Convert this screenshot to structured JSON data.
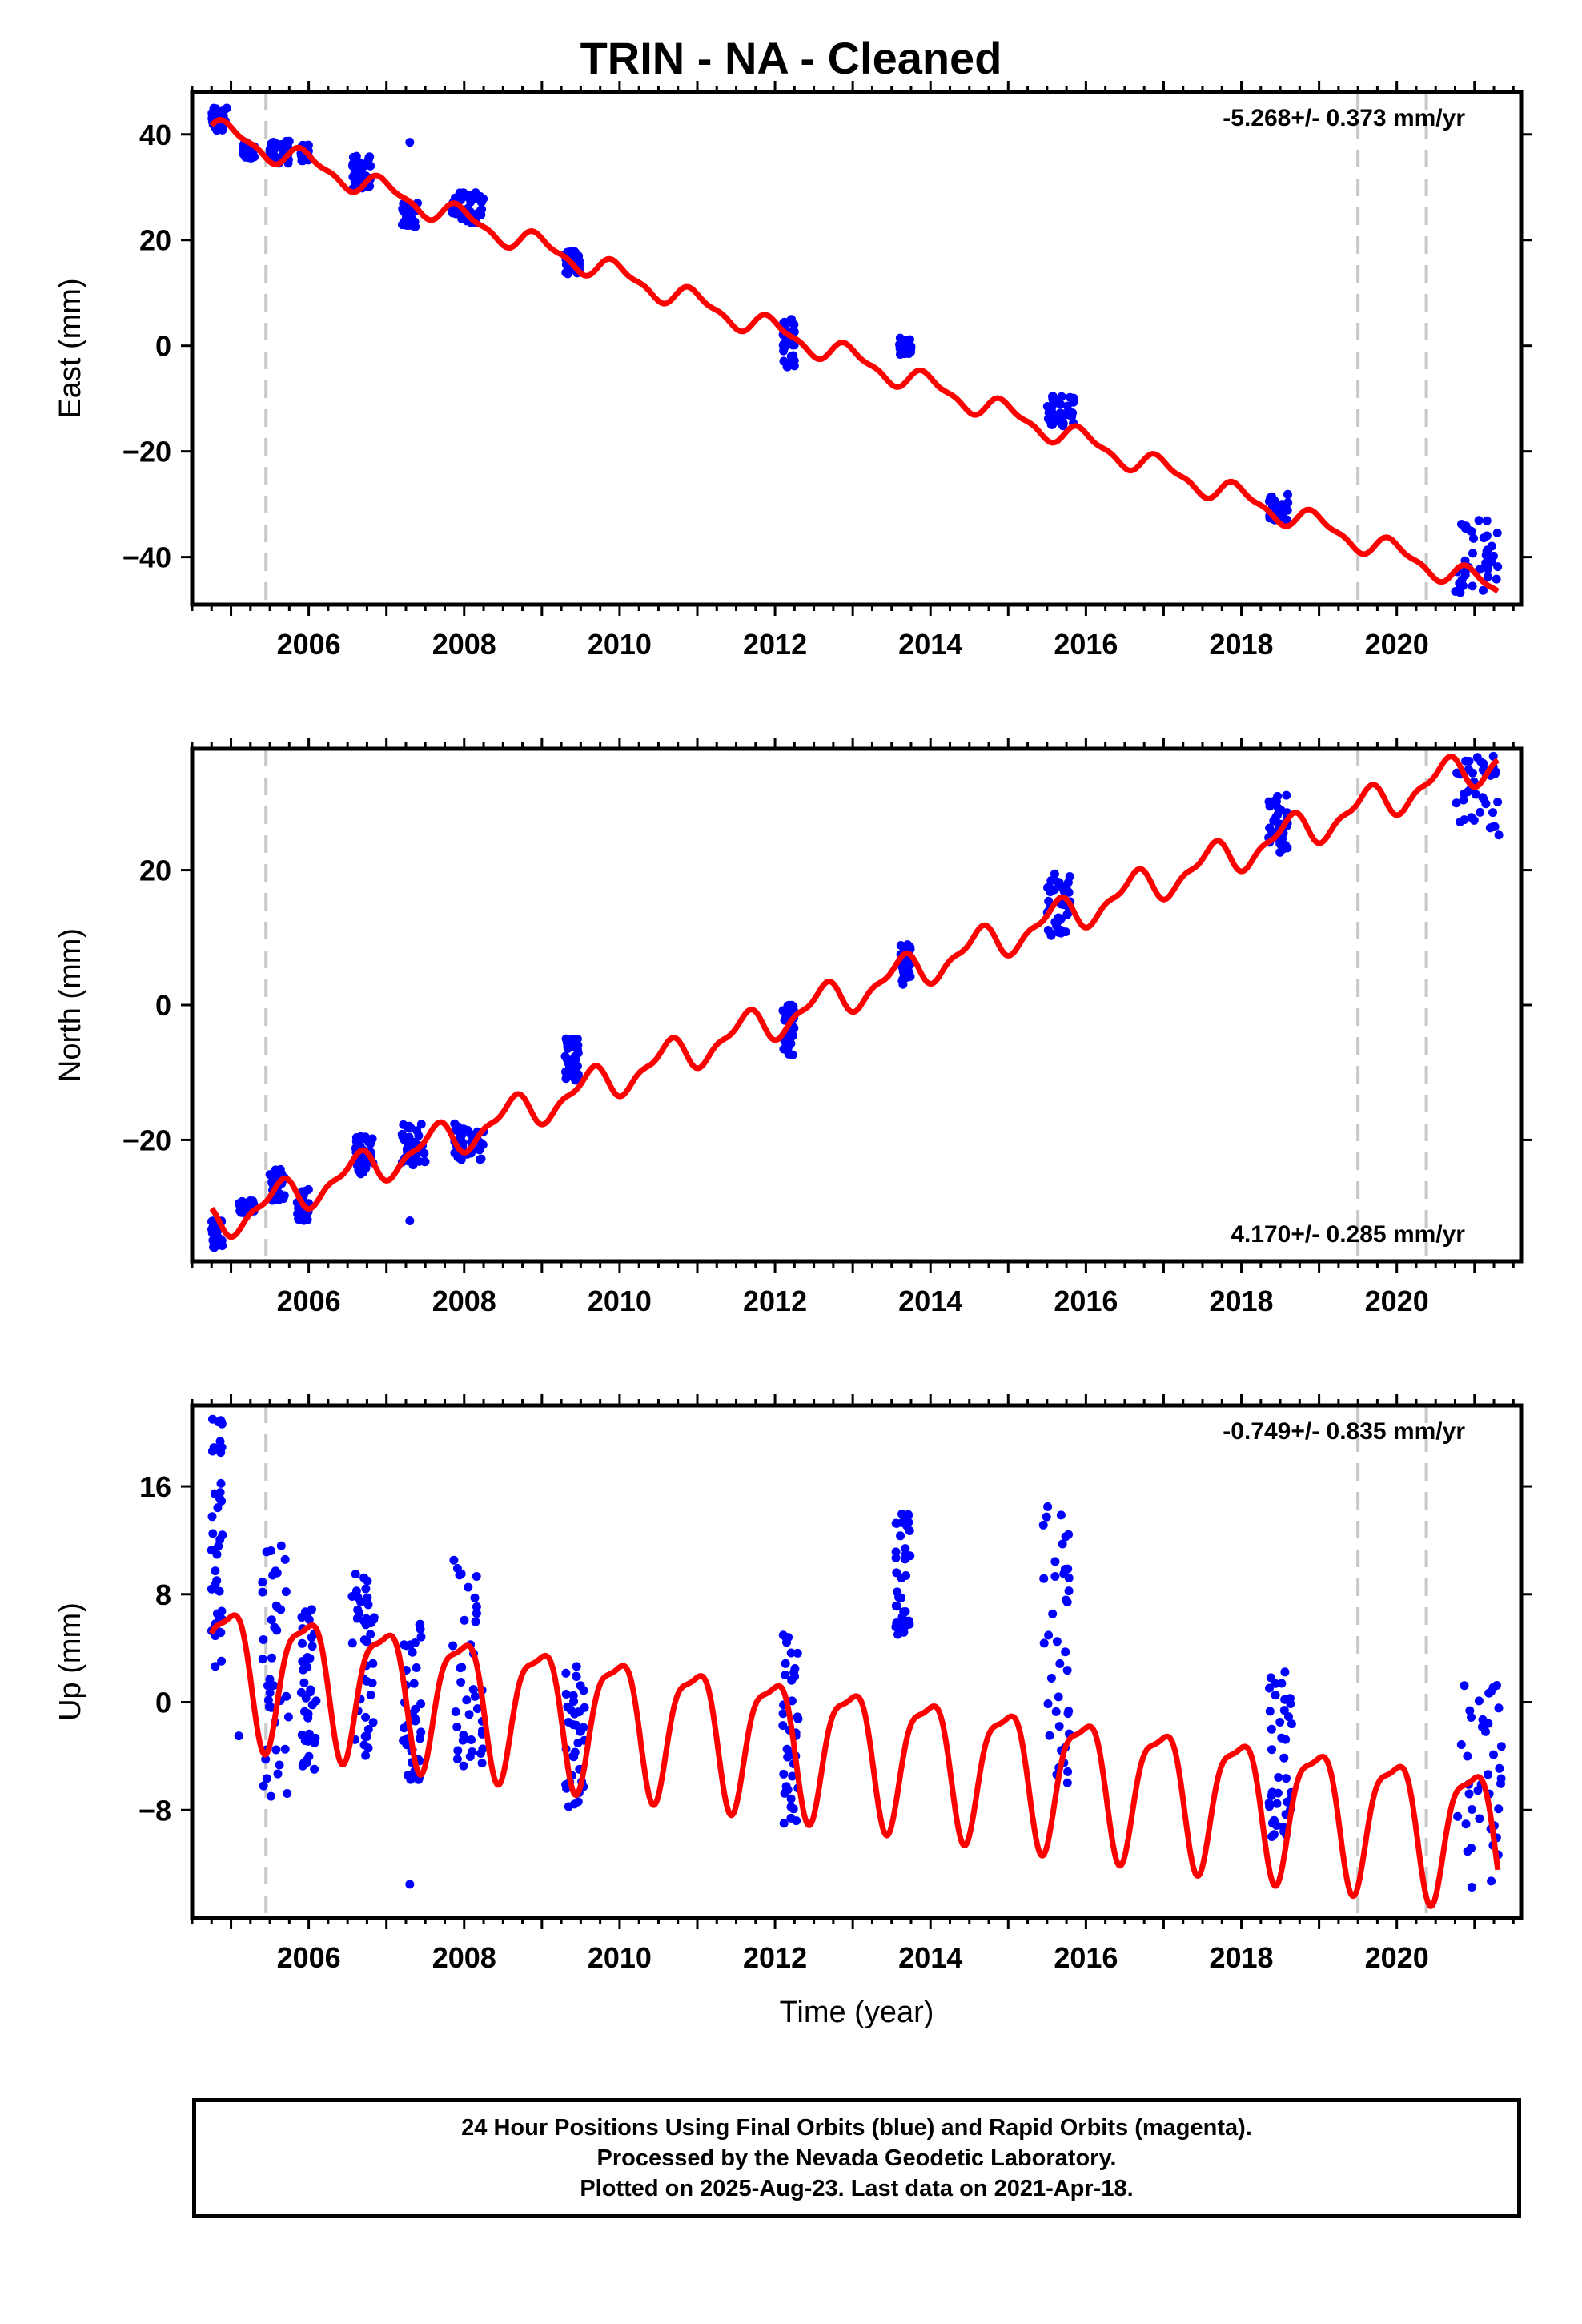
{
  "title": "TRIN  - NA - Cleaned",
  "colors": {
    "data": "#0000ff",
    "model": "#ff0000",
    "event_line": "#c8c8c8",
    "frame": "#000000"
  },
  "chart_data": [
    {
      "type": "scatter",
      "name": "east",
      "ylabel": "East (mm)",
      "xlabel": "",
      "rate_label": "-5.268+/- 0.373 mm/yr",
      "rate_position": "top-right",
      "xlim": [
        2004.5,
        2021.6
      ],
      "ylim": [
        -49,
        48
      ],
      "x_ticks": [
        2006,
        2008,
        2010,
        2012,
        2014,
        2016,
        2018,
        2020
      ],
      "y_ticks": [
        40,
        20,
        0,
        -20,
        -40
      ],
      "event_lines": [
        2005.45,
        2019.5,
        2020.38
      ],
      "model": {
        "offset": 39.7,
        "t0": 2005,
        "rate": -5.268,
        "annual_amp": 2.0,
        "semiannual_amp": 0.8,
        "annual_phase": 0.72,
        "semiannual_phase": 0.22
      },
      "data_clusters": [
        {
          "x": [
            2004.75,
            2004.95
          ],
          "y": [
            40.5,
            45.0
          ]
        },
        {
          "x": [
            2005.15,
            2005.3
          ],
          "y": [
            35.5,
            38.5
          ]
        },
        {
          "x": [
            2005.5,
            2005.75
          ],
          "y": [
            34.5,
            39.0
          ]
        },
        {
          "x": [
            2005.9,
            2006.0
          ],
          "y": [
            35.0,
            38.0
          ]
        },
        {
          "x": [
            2006.55,
            2006.8
          ],
          "y": [
            29.5,
            36.0
          ]
        },
        {
          "x": [
            2007.2,
            2007.4
          ],
          "y": [
            22.0,
            27.0
          ]
        },
        {
          "x": [
            2007.85,
            2008.25
          ],
          "y": [
            23.0,
            29.0
          ]
        },
        {
          "x": [
            2009.3,
            2009.5
          ],
          "y": [
            13.5,
            18.0
          ]
        },
        {
          "x": [
            2012.1,
            2012.25
          ],
          "y": [
            -4.0,
            5.0
          ]
        },
        {
          "x": [
            2013.6,
            2013.75
          ],
          "y": [
            -2.0,
            1.5
          ]
        },
        {
          "x": [
            2015.5,
            2015.85
          ],
          "y": [
            -15.5,
            -9.5
          ]
        },
        {
          "x": [
            2018.35,
            2018.6
          ],
          "y": [
            -33.0,
            -28.0
          ]
        },
        {
          "x": [
            2020.75,
            2021.3
          ],
          "y": [
            -47.0,
            -33.0
          ]
        }
      ],
      "outliers": [
        {
          "x": 2007.3,
          "y": 38.5
        }
      ]
    },
    {
      "type": "scatter",
      "name": "north",
      "ylabel": "North (mm)",
      "xlabel": "",
      "rate_label": "4.170+/- 0.285 mm/yr",
      "rate_position": "bottom-right",
      "xlim": [
        2004.5,
        2021.6
      ],
      "ylim": [
        -38,
        38
      ],
      "x_ticks": [
        2006,
        2008,
        2010,
        2012,
        2014,
        2016,
        2018,
        2020
      ],
      "y_ticks": [
        20,
        0,
        -20
      ],
      "event_lines": [
        2005.45,
        2019.5,
        2020.38
      ],
      "model": {
        "offset": -31.5,
        "t0": 2005,
        "rate": 4.17,
        "annual_amp": 2.4,
        "semiannual_amp": 1.0,
        "annual_phase": 0.35,
        "semiannual_phase": 0.1
      },
      "data_clusters": [
        {
          "x": [
            2004.75,
            2004.9
          ],
          "y": [
            -36.0,
            -32.0
          ]
        },
        {
          "x": [
            2005.1,
            2005.3
          ],
          "y": [
            -31.0,
            -29.0
          ]
        },
        {
          "x": [
            2005.5,
            2005.7
          ],
          "y": [
            -29.0,
            -24.0
          ]
        },
        {
          "x": [
            2005.85,
            2006.0
          ],
          "y": [
            -32.0,
            -27.0
          ]
        },
        {
          "x": [
            2006.6,
            2006.85
          ],
          "y": [
            -25.5,
            -19.5
          ]
        },
        {
          "x": [
            2007.2,
            2007.5
          ],
          "y": [
            -24.0,
            -17.5
          ]
        },
        {
          "x": [
            2007.85,
            2008.25
          ],
          "y": [
            -23.0,
            -17.5
          ]
        },
        {
          "x": [
            2009.3,
            2009.5
          ],
          "y": [
            -12.0,
            -5.0
          ]
        },
        {
          "x": [
            2012.1,
            2012.25
          ],
          "y": [
            -7.5,
            0.0
          ]
        },
        {
          "x": [
            2013.6,
            2013.75
          ],
          "y": [
            3.0,
            9.0
          ]
        },
        {
          "x": [
            2015.5,
            2015.8
          ],
          "y": [
            10.0,
            19.5
          ]
        },
        {
          "x": [
            2018.35,
            2018.6
          ],
          "y": [
            22.5,
            31.5
          ]
        },
        {
          "x": [
            2020.75,
            2021.35
          ],
          "y": [
            24.0,
            37.0
          ]
        }
      ],
      "outliers": [
        {
          "x": 2007.3,
          "y": -32.0
        }
      ]
    },
    {
      "type": "scatter",
      "name": "up",
      "ylabel": "Up (mm)",
      "xlabel": "Time (year)",
      "rate_label": "-0.749+/- 0.835 mm/yr",
      "rate_position": "top-right",
      "xlim": [
        2004.5,
        2021.6
      ],
      "ylim": [
        -16,
        22
      ],
      "x_ticks": [
        2006,
        2008,
        2010,
        2012,
        2014,
        2016,
        2018,
        2020
      ],
      "y_ticks": [
        16,
        8,
        0,
        -8
      ],
      "event_lines": [
        2005.45,
        2019.5,
        2020.38
      ],
      "model": {
        "offset": 2.6,
        "t0": 2005,
        "rate": -0.749,
        "annual_amp": 4.8,
        "semiannual_amp": 1.4,
        "annual_phase": 0.7,
        "semiannual_phase": 0.55
      },
      "data_clusters": [
        {
          "x": [
            2004.75,
            2004.9
          ],
          "y": [
            2.0,
            21.0
          ]
        },
        {
          "x": [
            2005.4,
            2005.75
          ],
          "y": [
            -7.0,
            12.0
          ]
        },
        {
          "x": [
            2005.9,
            2006.1
          ],
          "y": [
            -5.0,
            7.0
          ]
        },
        {
          "x": [
            2006.55,
            2006.85
          ],
          "y": [
            -4.0,
            9.5
          ]
        },
        {
          "x": [
            2007.2,
            2007.45
          ],
          "y": [
            -6.0,
            6.0
          ]
        },
        {
          "x": [
            2007.85,
            2008.25
          ],
          "y": [
            -5.0,
            11.0
          ]
        },
        {
          "x": [
            2009.3,
            2009.55
          ],
          "y": [
            -9.0,
            3.5
          ]
        },
        {
          "x": [
            2012.1,
            2012.3
          ],
          "y": [
            -9.0,
            5.0
          ]
        },
        {
          "x": [
            2013.55,
            2013.75
          ],
          "y": [
            5.0,
            14.5
          ]
        },
        {
          "x": [
            2015.45,
            2015.8
          ],
          "y": [
            -6.0,
            14.5
          ]
        },
        {
          "x": [
            2018.35,
            2018.65
          ],
          "y": [
            -11.0,
            2.5
          ]
        },
        {
          "x": [
            2020.75,
            2021.35
          ],
          "y": [
            -15.0,
            2.5
          ]
        }
      ],
      "outliers": [
        {
          "x": 2007.3,
          "y": -13.5
        },
        {
          "x": 2005.1,
          "y": -2.5
        }
      ]
    }
  ],
  "footer": {
    "line1": "24 Hour Positions Using Final Orbits (blue) and Rapid Orbits (magenta).",
    "line2": "Processed by the Nevada Geodetic Laboratory.",
    "line3": "Plotted on 2025-Aug-23. Last data on 2021-Apr-18."
  }
}
